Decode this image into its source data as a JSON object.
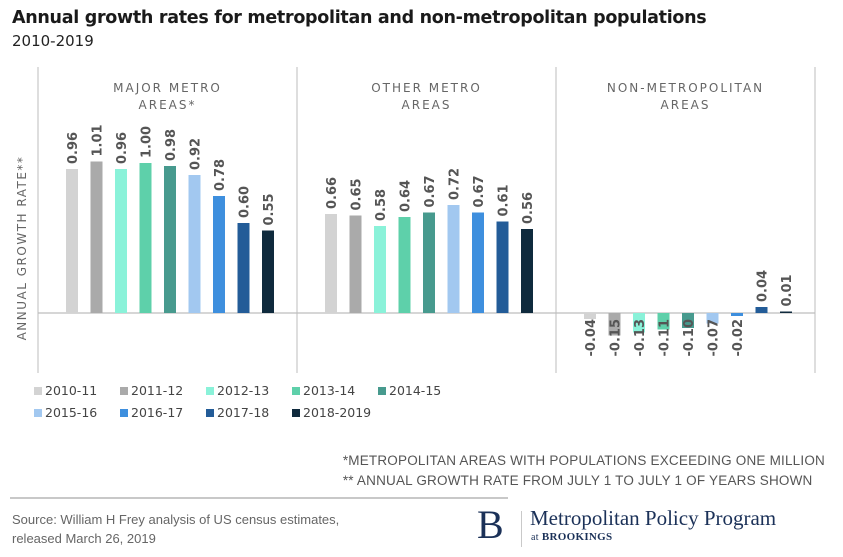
{
  "chart_data": {
    "type": "bar",
    "title": "Annual growth rates for metropolitan and non-metropolitan populations",
    "subtitle": "2010-2019",
    "ylabel": "ANNUAL GROWTH RATE**",
    "xlabel": "",
    "ylim": [
      -0.4,
      1.2
    ],
    "grid": false,
    "legend_position": "bottom-left",
    "series_names": [
      "2010-11",
      "2011-12",
      "2012-13",
      "2013-14",
      "2014-15",
      "2015-16",
      "2016-17",
      "2017-18",
      "2018-2019"
    ],
    "colors": [
      "#d3d3d3",
      "#aaaaaa",
      "#8af2d9",
      "#5ed0aa",
      "#479a8e",
      "#a2c8f0",
      "#3e8fde",
      "#235c98",
      "#0f2a3d"
    ],
    "panels": [
      {
        "label_line1": "MAJOR METRO",
        "label_line2": "AREAS*",
        "values": [
          0.96,
          1.01,
          0.96,
          1.0,
          0.98,
          0.92,
          0.78,
          0.6,
          0.55
        ],
        "value_labels": [
          "0.96",
          "1.01",
          "0.96",
          "1.00",
          "0.98",
          "0.92",
          "0.78",
          "0.60",
          "0.55"
        ]
      },
      {
        "label_line1": "OTHER METRO",
        "label_line2": "AREAS",
        "values": [
          0.66,
          0.65,
          0.58,
          0.64,
          0.67,
          0.72,
          0.67,
          0.61,
          0.56
        ],
        "value_labels": [
          "0.66",
          "0.65",
          "0.58",
          "0.64",
          "0.67",
          "0.72",
          "0.67",
          "0.61",
          "0.56"
        ]
      },
      {
        "label_line1": "NON-METROPOLITAN",
        "label_line2": "AREAS",
        "values": [
          -0.04,
          -0.15,
          -0.13,
          -0.11,
          -0.1,
          -0.07,
          -0.02,
          0.04,
          0.01
        ],
        "value_labels": [
          "-0.04",
          "-0.15",
          "-0.13",
          "-0.11",
          "-0.10",
          "-0.07",
          "-0.02",
          "0.04",
          "0.01"
        ]
      }
    ]
  },
  "footnotes": {
    "line1": "*METROPOLITAN AREAS WITH POPULATIONS EXCEEDING ONE MILLION",
    "line2": "** ANNUAL GROWTH RATE FROM JULY 1 TO JULY 1 OF YEARS SHOWN"
  },
  "source": {
    "line1": "Source: William H Frey analysis of US census estimates,",
    "line2": "released March 26, 2019"
  },
  "logo": {
    "mark": "B",
    "name": "Metropolitan Policy Program",
    "sub_prefix": "at",
    "sub_org": "BROOKINGS"
  }
}
